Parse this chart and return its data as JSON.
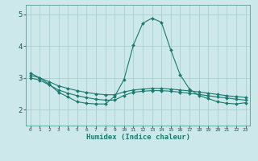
{
  "background_color": "#cce8ea",
  "grid_color": "#aacfcf",
  "line_color": "#1a7a6e",
  "x_label": "Humidex (Indice chaleur)",
  "x_ticks": [
    0,
    1,
    2,
    3,
    4,
    5,
    6,
    7,
    8,
    9,
    10,
    11,
    12,
    13,
    14,
    15,
    16,
    17,
    18,
    19,
    20,
    21,
    22,
    23
  ],
  "ylim": [
    1.5,
    5.3
  ],
  "xlim": [
    -0.5,
    23.5
  ],
  "yticks": [
    2,
    3,
    4,
    5
  ],
  "series": [
    {
      "x": [
        0,
        1,
        2,
        3,
        4,
        5,
        6,
        7,
        8,
        9,
        10,
        11,
        12,
        13,
        14,
        15,
        16,
        17,
        18,
        19,
        20,
        21,
        22,
        23
      ],
      "y": [
        3.15,
        3.0,
        2.8,
        2.55,
        2.4,
        2.25,
        2.2,
        2.18,
        2.18,
        2.42,
        2.95,
        4.03,
        4.72,
        4.88,
        4.75,
        3.88,
        3.1,
        2.65,
        2.45,
        2.35,
        2.25,
        2.2,
        2.18,
        2.22
      ]
    },
    {
      "x": [
        0,
        1,
        2,
        3,
        4,
        5,
        6,
        7,
        8,
        9,
        10,
        11,
        12,
        13,
        14,
        15,
        16,
        17,
        18,
        19,
        20,
        21,
        22,
        23
      ],
      "y": [
        3.0,
        2.93,
        2.78,
        2.62,
        2.52,
        2.44,
        2.38,
        2.33,
        2.3,
        2.3,
        2.45,
        2.55,
        2.58,
        2.6,
        2.6,
        2.58,
        2.55,
        2.52,
        2.48,
        2.44,
        2.4,
        2.37,
        2.33,
        2.3
      ]
    },
    {
      "x": [
        0,
        1,
        2,
        3,
        4,
        5,
        6,
        7,
        8,
        9,
        10,
        11,
        12,
        13,
        14,
        15,
        16,
        17,
        18,
        19,
        20,
        21,
        22,
        23
      ],
      "y": [
        3.08,
        3.0,
        2.88,
        2.75,
        2.67,
        2.6,
        2.54,
        2.5,
        2.47,
        2.47,
        2.56,
        2.62,
        2.65,
        2.67,
        2.67,
        2.65,
        2.62,
        2.59,
        2.56,
        2.52,
        2.48,
        2.44,
        2.41,
        2.39
      ]
    }
  ]
}
